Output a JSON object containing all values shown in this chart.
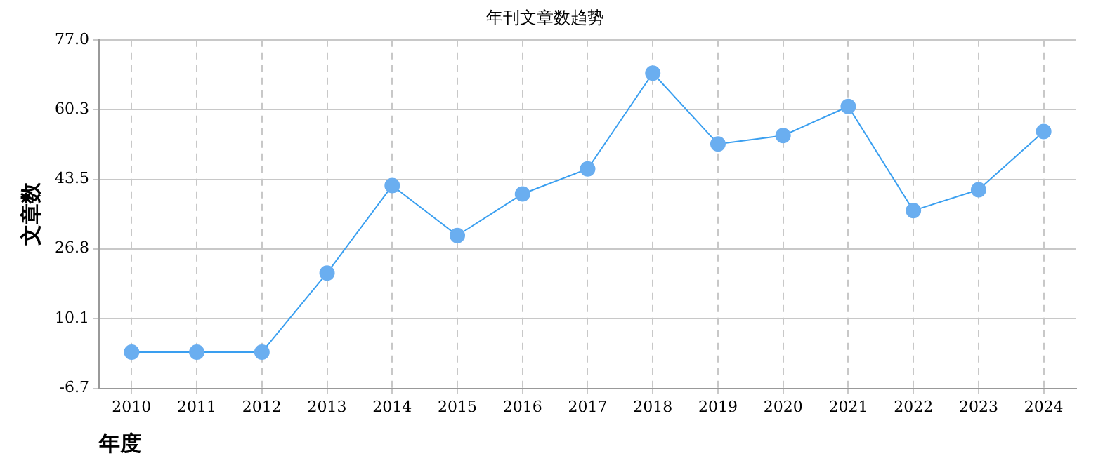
{
  "chart_data": {
    "type": "line",
    "title": "年刊文章数趋势",
    "xlabel": "年度",
    "ylabel": "文章数",
    "categories": [
      "2010",
      "2011",
      "2012",
      "2013",
      "2014",
      "2015",
      "2016",
      "2017",
      "2018",
      "2019",
      "2020",
      "2021",
      "2022",
      "2023",
      "2024"
    ],
    "series": [
      {
        "color": "#3a9ff0",
        "values": [
          2,
          2,
          2,
          21,
          42,
          30,
          40,
          46,
          69,
          52,
          54,
          61,
          36,
          41,
          55
        ]
      }
    ],
    "ylim": [
      -6.7,
      77.0
    ],
    "yticks": [
      {
        "value": -6.7,
        "label": "-6.7"
      },
      {
        "value": 10.1,
        "label": "10.1"
      },
      {
        "value": 26.8,
        "label": "26.8"
      },
      {
        "value": 43.5,
        "label": "43.5"
      },
      {
        "value": 60.3,
        "label": "60.3"
      },
      {
        "value": 77.0,
        "label": "77.0"
      }
    ],
    "grid": true,
    "marker": "circle",
    "legend": false
  }
}
